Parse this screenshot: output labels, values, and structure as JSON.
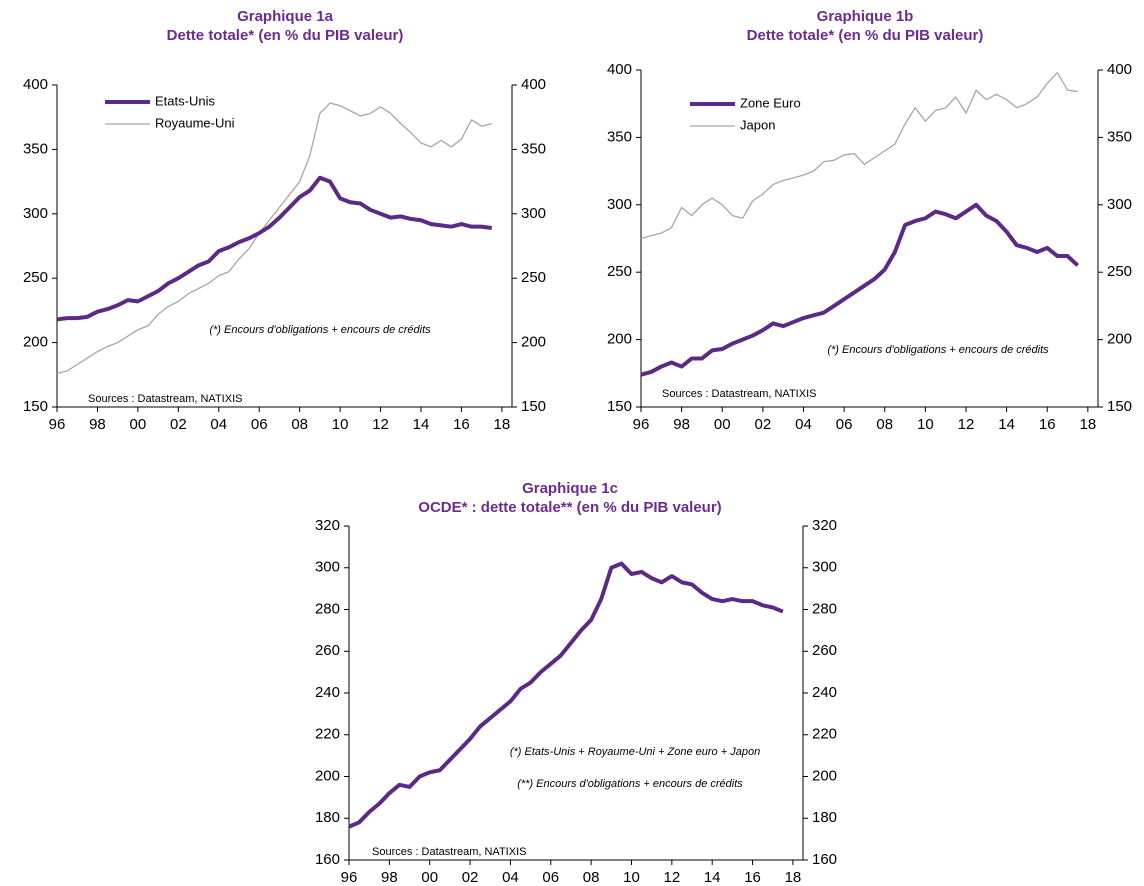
{
  "chart_data": [
    {
      "type": "line",
      "title": "Graphique 1a",
      "subtitle": "Dette totale* (en % du PIB valeur)",
      "x": [
        1996,
        1996.5,
        1997,
        1997.5,
        1998,
        1998.5,
        1999,
        1999.5,
        2000,
        2000.5,
        2001,
        2001.5,
        2002,
        2002.5,
        2003,
        2003.5,
        2004,
        2004.5,
        2005,
        2005.5,
        2006,
        2006.5,
        2007,
        2007.5,
        2008,
        2008.5,
        2009,
        2009.5,
        2010,
        2010.5,
        2011,
        2011.5,
        2012,
        2012.5,
        2013,
        2013.5,
        2014,
        2014.5,
        2015,
        2015.5,
        2016,
        2016.5,
        2017,
        2017.5
      ],
      "series": [
        {
          "name": "Etats-Unis",
          "color": "#5b2a86",
          "values": [
            218,
            219,
            219,
            220,
            224,
            226,
            229,
            233,
            232,
            236,
            240,
            246,
            250,
            255,
            260,
            263,
            271,
            274,
            278,
            281,
            285,
            290,
            297,
            305,
            313,
            318,
            328,
            325,
            312,
            309,
            308,
            303,
            300,
            297,
            298,
            296,
            295,
            292,
            291,
            290,
            292,
            290,
            290,
            289
          ]
        },
        {
          "name": "Royaume-Uni",
          "color": "#a6a6a6",
          "values": [
            176,
            178,
            183,
            188,
            193,
            197,
            200,
            205,
            210,
            213,
            222,
            228,
            232,
            238,
            242,
            246,
            252,
            255,
            265,
            273,
            285,
            295,
            305,
            315,
            325,
            345,
            378,
            386,
            384,
            380,
            376,
            378,
            383,
            378,
            370,
            363,
            355,
            352,
            357,
            352,
            358,
            373,
            368,
            370
          ]
        }
      ],
      "xlim": [
        1996,
        2018.5
      ],
      "xticks": [
        {
          "value": 1996,
          "label": "96"
        },
        {
          "value": 1998,
          "label": "98"
        },
        {
          "value": 2000,
          "label": "00"
        },
        {
          "value": 2002,
          "label": "02"
        },
        {
          "value": 2004,
          "label": "04"
        },
        {
          "value": 2006,
          "label": "06"
        },
        {
          "value": 2008,
          "label": "08"
        },
        {
          "value": 2010,
          "label": "10"
        },
        {
          "value": 2012,
          "label": "12"
        },
        {
          "value": 2014,
          "label": "14"
        },
        {
          "value": 2016,
          "label": "16"
        },
        {
          "value": 2018,
          "label": "18"
        }
      ],
      "ylim": [
        150,
        400
      ],
      "yticks": [
        150,
        200,
        250,
        300,
        350,
        400
      ],
      "y2lim": [
        150,
        400
      ],
      "y2ticks": [
        150,
        200,
        250,
        300,
        350,
        400
      ],
      "legend": "upper left",
      "annotations": [
        "(*) Encours d'obligations  + encours de crédits",
        "Sources  : Datastream,  NATIXIS"
      ]
    },
    {
      "type": "line",
      "title": "Graphique 1b",
      "subtitle": "Dette totale* (en % du PIB valeur)",
      "x": [
        1996,
        1996.5,
        1997,
        1997.5,
        1998,
        1998.5,
        1999,
        1999.5,
        2000,
        2000.5,
        2001,
        2001.5,
        2002,
        2002.5,
        2003,
        2003.5,
        2004,
        2004.5,
        2005,
        2005.5,
        2006,
        2006.5,
        2007,
        2007.5,
        2008,
        2008.5,
        2009,
        2009.5,
        2010,
        2010.5,
        2011,
        2011.5,
        2012,
        2012.5,
        2013,
        2013.5,
        2014,
        2014.5,
        2015,
        2015.5,
        2016,
        2016.5,
        2017,
        2017.5
      ],
      "series": [
        {
          "name": "Zone Euro",
          "color": "#5b2a86",
          "values": [
            174,
            176,
            180,
            183,
            180,
            186,
            186,
            192,
            193,
            197,
            200,
            203,
            207,
            212,
            210,
            213,
            216,
            218,
            220,
            225,
            230,
            235,
            240,
            245,
            252,
            265,
            285,
            288,
            290,
            295,
            293,
            290,
            295,
            300,
            292,
            288,
            280,
            270,
            268,
            265,
            268,
            262,
            262,
            255
          ]
        },
        {
          "name": "Japon",
          "color": "#a6a6a6",
          "values": [
            275,
            277,
            279,
            283,
            298,
            292,
            300,
            305,
            300,
            292,
            290,
            303,
            308,
            315,
            318,
            320,
            322,
            325,
            332,
            333,
            337,
            338,
            330,
            335,
            340,
            345,
            360,
            372,
            362,
            370,
            372,
            380,
            368,
            385,
            378,
            382,
            378,
            372,
            375,
            380,
            390,
            398,
            385,
            384
          ]
        }
      ],
      "xlim": [
        1996,
        2018.5
      ],
      "xticks": [
        {
          "value": 1996,
          "label": "96"
        },
        {
          "value": 1998,
          "label": "98"
        },
        {
          "value": 2000,
          "label": "00"
        },
        {
          "value": 2002,
          "label": "02"
        },
        {
          "value": 2004,
          "label": "04"
        },
        {
          "value": 2006,
          "label": "06"
        },
        {
          "value": 2008,
          "label": "08"
        },
        {
          "value": 2010,
          "label": "10"
        },
        {
          "value": 2012,
          "label": "12"
        },
        {
          "value": 2014,
          "label": "14"
        },
        {
          "value": 2016,
          "label": "16"
        },
        {
          "value": 2018,
          "label": "18"
        }
      ],
      "ylim": [
        150,
        400
      ],
      "yticks": [
        150,
        200,
        250,
        300,
        350,
        400
      ],
      "y2lim": [
        150,
        400
      ],
      "y2ticks": [
        150,
        200,
        250,
        300,
        350,
        400
      ],
      "legend": "upper left",
      "annotations": [
        "(*) Encours d'obligations  + encours de crédits",
        "Sources  : Datastream,  NATIXIS"
      ]
    },
    {
      "type": "line",
      "title": "Graphique 1c",
      "subtitle": "OCDE* : dette totale** (en % du PIB valeur)",
      "x": [
        1996,
        1996.5,
        1997,
        1997.5,
        1998,
        1998.5,
        1999,
        1999.5,
        2000,
        2000.5,
        2001,
        2001.5,
        2002,
        2002.5,
        2003,
        2003.5,
        2004,
        2004.5,
        2005,
        2005.5,
        2006,
        2006.5,
        2007,
        2007.5,
        2008,
        2008.5,
        2009,
        2009.5,
        2010,
        2010.5,
        2011,
        2011.5,
        2012,
        2012.5,
        2013,
        2013.5,
        2014,
        2014.5,
        2015,
        2015.5,
        2016,
        2016.5,
        2017,
        2017.5
      ],
      "series": [
        {
          "color": "#5b2a86",
          "values": [
            176,
            178,
            183,
            187,
            192,
            196,
            195,
            200,
            202,
            203,
            208,
            213,
            218,
            224,
            228,
            232,
            236,
            242,
            245,
            250,
            254,
            258,
            264,
            270,
            275,
            285,
            300,
            302,
            297,
            298,
            295,
            293,
            296,
            293,
            292,
            288,
            285,
            284,
            285,
            284,
            284,
            282,
            281,
            279
          ]
        }
      ],
      "xlim": [
        1996,
        2018.5
      ],
      "xticks": [
        {
          "value": 1996,
          "label": "96"
        },
        {
          "value": 1998,
          "label": "98"
        },
        {
          "value": 2000,
          "label": "00"
        },
        {
          "value": 2002,
          "label": "02"
        },
        {
          "value": 2004,
          "label": "04"
        },
        {
          "value": 2006,
          "label": "06"
        },
        {
          "value": 2008,
          "label": "08"
        },
        {
          "value": 2010,
          "label": "10"
        },
        {
          "value": 2012,
          "label": "12"
        },
        {
          "value": 2014,
          "label": "14"
        },
        {
          "value": 2016,
          "label": "16"
        },
        {
          "value": 2018,
          "label": "18"
        }
      ],
      "ylim": [
        160,
        320
      ],
      "yticks": [
        160,
        180,
        200,
        220,
        240,
        260,
        280,
        300,
        320
      ],
      "y2lim": [
        160,
        320
      ],
      "y2ticks": [
        160,
        180,
        200,
        220,
        240,
        260,
        280,
        300,
        320
      ],
      "annotations": [
        "(*) Etats-Unis + Royaume-Uni  + Zone euro + Japon",
        "(**) Encours d'obligations  + encours de crédits",
        "Sources  : Datastream,  NATIXIS"
      ]
    }
  ]
}
